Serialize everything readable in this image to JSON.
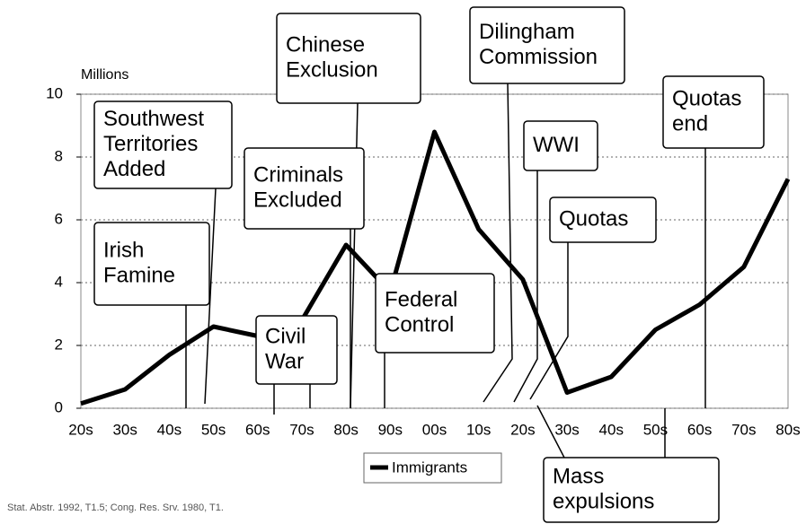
{
  "chart_data": {
    "type": "line",
    "y_axis_label": "Millions",
    "categories": [
      "20s",
      "30s",
      "40s",
      "50s",
      "60s",
      "70s",
      "80s",
      "90s",
      "00s",
      "10s",
      "20s",
      "30s",
      "40s",
      "50s",
      "60s",
      "70s",
      "80s"
    ],
    "series": [
      {
        "name": "Immigrants",
        "color": "#000000",
        "values": [
          0.15,
          0.6,
          1.7,
          2.6,
          2.3,
          2.8,
          5.2,
          3.7,
          8.8,
          5.7,
          4.1,
          0.5,
          1.0,
          2.5,
          3.3,
          4.5,
          7.3
        ]
      }
    ],
    "ylim": [
      0,
      10
    ],
    "yticks": [
      0,
      2,
      4,
      6,
      8,
      10
    ],
    "grid": true,
    "legend": "bottom",
    "annotations": [
      {
        "lines": [
          "Southwest",
          "Territories",
          "Added"
        ]
      },
      {
        "lines": [
          "Irish",
          "Famine"
        ]
      },
      {
        "lines": [
          "Criminals",
          "Excluded"
        ]
      },
      {
        "lines": [
          "Chinese",
          "Exclusion"
        ]
      },
      {
        "lines": [
          "Civil",
          "War"
        ]
      },
      {
        "lines": [
          "Federal",
          "Control"
        ]
      },
      {
        "lines": [
          "Dilingham",
          "Commission"
        ]
      },
      {
        "lines": [
          "WWI"
        ]
      },
      {
        "lines": [
          "Quotas"
        ]
      },
      {
        "lines": [
          "Quotas",
          "end"
        ]
      },
      {
        "lines": [
          "Mass",
          "expulsions"
        ]
      }
    ],
    "source": "Stat. Abstr. 1992, T1.5; Cong. Res. Srv. 1980, T1."
  }
}
